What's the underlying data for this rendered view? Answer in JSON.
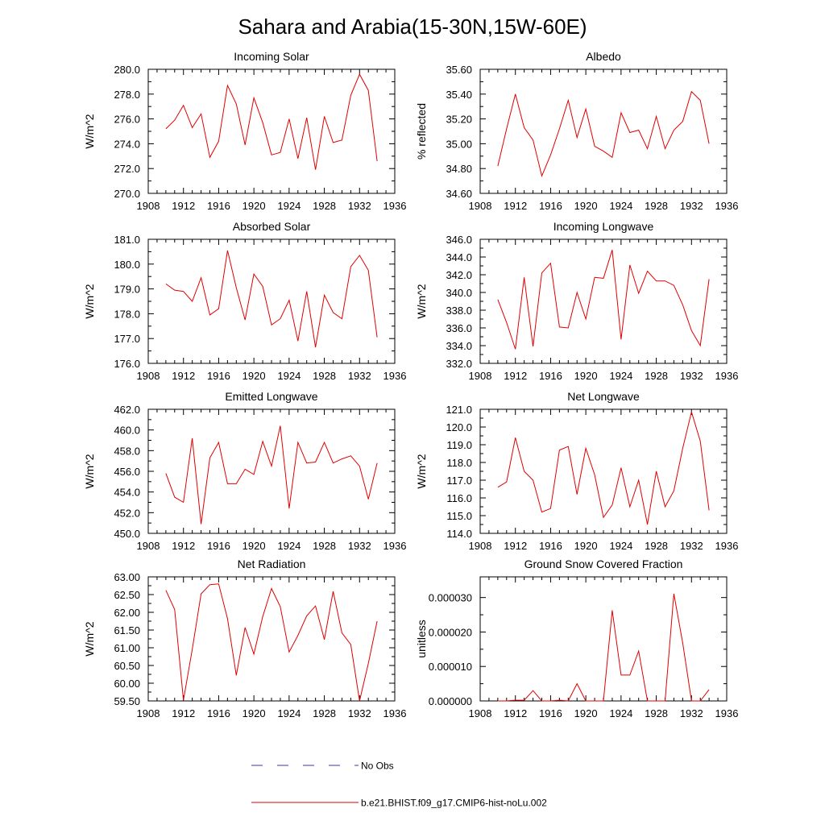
{
  "title": "Sahara and Arabia(15-30N,15W-60E)",
  "legend": {
    "placement": "bottom-center",
    "items": [
      {
        "label": "No Obs",
        "color": "#3a3aa8",
        "style": "dashed"
      },
      {
        "label": "b.e21.BHIST.f09_g17.CMIP6-hist-noLu.002",
        "color": "#e00000",
        "style": "solid"
      }
    ]
  },
  "colors": {
    "series": "#e00000",
    "axis": "#000000"
  },
  "chart_data": [
    {
      "type": "line",
      "title": "Incoming Solar",
      "ylabel": "W/m^2",
      "xlim": [
        1908,
        1936
      ],
      "xticks": [
        "1908",
        "1912",
        "1916",
        "1920",
        "1924",
        "1928",
        "1932",
        "1936"
      ],
      "ylim": [
        270,
        280
      ],
      "yticks": [
        "270.0",
        "272.0",
        "274.0",
        "276.0",
        "278.0",
        "280.0"
      ],
      "x": [
        1910,
        1911,
        1912,
        1913,
        1914,
        1915,
        1916,
        1917,
        1918,
        1919,
        1920,
        1921,
        1922,
        1923,
        1924,
        1925,
        1926,
        1927,
        1928,
        1929,
        1930,
        1931,
        1932,
        1933,
        1934
      ],
      "series": [
        {
          "name": "b.e21.BHIST.f09_g17.CMIP6-hist-noLu.002",
          "values": [
            275.2,
            275.9,
            277.1,
            275.3,
            276.4,
            272.9,
            274.2,
            278.7,
            277.2,
            273.9,
            277.7,
            275.7,
            273.1,
            273.3,
            276.0,
            272.8,
            276.1,
            271.9,
            276.2,
            274.1,
            274.3,
            277.9,
            279.6,
            278.3,
            272.6
          ]
        }
      ]
    },
    {
      "type": "line",
      "title": "Albedo",
      "ylabel": "% reflected",
      "xlim": [
        1908,
        1936
      ],
      "xticks": [
        "1908",
        "1912",
        "1916",
        "1920",
        "1924",
        "1928",
        "1932",
        "1936"
      ],
      "ylim": [
        34.6,
        35.6
      ],
      "yticks": [
        "34.60",
        "34.80",
        "35.00",
        "35.20",
        "35.40",
        "35.60"
      ],
      "x": [
        1910,
        1911,
        1912,
        1913,
        1914,
        1915,
        1916,
        1917,
        1918,
        1919,
        1920,
        1921,
        1922,
        1923,
        1924,
        1925,
        1926,
        1927,
        1928,
        1929,
        1930,
        1931,
        1932,
        1933,
        1934
      ],
      "series": [
        {
          "name": "b.e21.BHIST.f09_g17.CMIP6-hist-noLu.002",
          "values": [
            34.82,
            35.12,
            35.4,
            35.13,
            35.03,
            34.74,
            34.91,
            35.12,
            35.35,
            35.05,
            35.28,
            34.98,
            34.94,
            34.89,
            35.25,
            35.09,
            35.11,
            34.96,
            35.22,
            34.96,
            35.11,
            35.18,
            35.42,
            35.35,
            35.0
          ]
        }
      ]
    },
    {
      "type": "line",
      "title": "Absorbed Solar",
      "ylabel": "W/m^2",
      "xlim": [
        1908,
        1936
      ],
      "xticks": [
        "1908",
        "1912",
        "1916",
        "1920",
        "1924",
        "1928",
        "1932",
        "1936"
      ],
      "ylim": [
        176,
        181
      ],
      "yticks": [
        "176.0",
        "177.0",
        "178.0",
        "179.0",
        "180.0",
        "181.0"
      ],
      "x": [
        1910,
        1911,
        1912,
        1913,
        1914,
        1915,
        1916,
        1917,
        1918,
        1919,
        1920,
        1921,
        1922,
        1923,
        1924,
        1925,
        1926,
        1927,
        1928,
        1929,
        1930,
        1931,
        1932,
        1933,
        1934
      ],
      "series": [
        {
          "name": "b.e21.BHIST.f09_g17.CMIP6-hist-noLu.002",
          "values": [
            179.2,
            178.95,
            178.9,
            178.5,
            179.45,
            177.95,
            178.2,
            180.55,
            179.05,
            177.75,
            179.6,
            179.1,
            177.55,
            177.8,
            178.55,
            176.9,
            178.9,
            176.65,
            178.75,
            178.05,
            177.8,
            179.9,
            180.35,
            179.75,
            177.05
          ]
        }
      ]
    },
    {
      "type": "line",
      "title": "Incoming Longwave",
      "ylabel": "W/m^2",
      "xlim": [
        1908,
        1936
      ],
      "xticks": [
        "1908",
        "1912",
        "1916",
        "1920",
        "1924",
        "1928",
        "1932",
        "1936"
      ],
      "ylim": [
        332,
        346
      ],
      "yticks": [
        "332.0",
        "334.0",
        "336.0",
        "338.0",
        "340.0",
        "342.0",
        "344.0",
        "346.0"
      ],
      "x": [
        1910,
        1911,
        1912,
        1913,
        1914,
        1915,
        1916,
        1917,
        1918,
        1919,
        1920,
        1921,
        1922,
        1923,
        1924,
        1925,
        1926,
        1927,
        1928,
        1929,
        1930,
        1931,
        1932,
        1933,
        1934
      ],
      "series": [
        {
          "name": "b.e21.BHIST.f09_g17.CMIP6-hist-noLu.002",
          "values": [
            339.2,
            336.6,
            333.6,
            341.7,
            333.9,
            342.2,
            343.3,
            336.1,
            336.0,
            340.0,
            337.0,
            341.7,
            341.6,
            344.8,
            334.7,
            343.1,
            339.9,
            342.4,
            341.3,
            341.3,
            340.8,
            338.6,
            335.7,
            334.0,
            341.5
          ]
        }
      ]
    },
    {
      "type": "line",
      "title": "Emitted Longwave",
      "ylabel": "W/m^2",
      "xlim": [
        1908,
        1936
      ],
      "xticks": [
        "1908",
        "1912",
        "1916",
        "1920",
        "1924",
        "1928",
        "1932",
        "1936"
      ],
      "ylim": [
        450,
        462
      ],
      "yticks": [
        "450.0",
        "452.0",
        "454.0",
        "456.0",
        "458.0",
        "460.0",
        "462.0"
      ],
      "x": [
        1910,
        1911,
        1912,
        1913,
        1914,
        1915,
        1916,
        1917,
        1918,
        1919,
        1920,
        1921,
        1922,
        1923,
        1924,
        1925,
        1926,
        1927,
        1928,
        1929,
        1930,
        1931,
        1932,
        1933,
        1934
      ],
      "series": [
        {
          "name": "b.e21.BHIST.f09_g17.CMIP6-hist-noLu.002",
          "values": [
            455.8,
            453.5,
            453.0,
            459.2,
            450.9,
            457.3,
            458.8,
            454.8,
            454.8,
            456.2,
            455.7,
            458.9,
            456.5,
            460.4,
            452.4,
            458.8,
            456.8,
            456.9,
            458.8,
            456.8,
            457.2,
            457.5,
            456.5,
            453.3,
            456.8
          ]
        }
      ]
    },
    {
      "type": "line",
      "title": "Net Longwave",
      "ylabel": "W/m^2",
      "xlim": [
        1908,
        1936
      ],
      "xticks": [
        "1908",
        "1912",
        "1916",
        "1920",
        "1924",
        "1928",
        "1932",
        "1936"
      ],
      "ylim": [
        114,
        121
      ],
      "yticks": [
        "114.0",
        "115.0",
        "116.0",
        "117.0",
        "118.0",
        "119.0",
        "120.0",
        "121.0"
      ],
      "x": [
        1910,
        1911,
        1912,
        1913,
        1914,
        1915,
        1916,
        1917,
        1918,
        1919,
        1920,
        1921,
        1922,
        1923,
        1924,
        1925,
        1926,
        1927,
        1928,
        1929,
        1930,
        1931,
        1932,
        1933,
        1934
      ],
      "series": [
        {
          "name": "b.e21.BHIST.f09_g17.CMIP6-hist-noLu.002",
          "values": [
            116.6,
            116.9,
            119.4,
            117.5,
            117.0,
            115.2,
            115.4,
            118.7,
            118.9,
            116.2,
            118.8,
            117.3,
            114.9,
            115.6,
            117.7,
            115.5,
            117.0,
            114.5,
            117.5,
            115.5,
            116.4,
            118.8,
            120.85,
            119.2,
            115.3
          ]
        }
      ]
    },
    {
      "type": "line",
      "title": "Net Radiation",
      "ylabel": "W/m^2",
      "xlim": [
        1908,
        1936
      ],
      "xticks": [
        "1908",
        "1912",
        "1916",
        "1920",
        "1924",
        "1928",
        "1932",
        "1936"
      ],
      "ylim": [
        59.5,
        63.0
      ],
      "yticks": [
        "59.50",
        "60.00",
        "60.50",
        "61.00",
        "61.50",
        "62.00",
        "62.50",
        "63.00"
      ],
      "x": [
        1910,
        1911,
        1912,
        1913,
        1914,
        1915,
        1916,
        1917,
        1918,
        1919,
        1920,
        1921,
        1922,
        1923,
        1924,
        1925,
        1926,
        1927,
        1928,
        1929,
        1930,
        1931,
        1932,
        1933,
        1934
      ],
      "series": [
        {
          "name": "b.e21.BHIST.f09_g17.CMIP6-hist-noLu.002",
          "values": [
            62.62,
            62.08,
            59.52,
            60.95,
            62.52,
            62.78,
            62.8,
            61.82,
            60.22,
            61.57,
            60.82,
            61.88,
            62.67,
            62.16,
            60.88,
            61.35,
            61.9,
            62.18,
            61.23,
            62.59,
            61.42,
            61.09,
            59.5,
            60.56,
            61.75
          ]
        }
      ]
    },
    {
      "type": "line",
      "title": "Ground Snow Covered Fraction",
      "ylabel": "unitless",
      "xlim": [
        1908,
        1936
      ],
      "xticks": [
        "1908",
        "1912",
        "1916",
        "1920",
        "1924",
        "1928",
        "1932",
        "1936"
      ],
      "ylim": [
        0,
        3.6e-05
      ],
      "yticks": [
        "0.000000",
        "0.000010",
        "0.000020",
        "0.000030"
      ],
      "ytick_values": [
        0,
        1e-05,
        2e-05,
        3e-05
      ],
      "x": [
        1910,
        1911,
        1912,
        1913,
        1914,
        1915,
        1916,
        1917,
        1918,
        1919,
        1920,
        1921,
        1922,
        1923,
        1924,
        1925,
        1926,
        1927,
        1928,
        1929,
        1930,
        1931,
        1932,
        1933,
        1934
      ],
      "series": [
        {
          "name": "b.e21.BHIST.f09_g17.CMIP6-hist-noLu.002",
          "values": [
            0,
            0,
            2e-07,
            2e-07,
            3e-06,
            0,
            0,
            2e-07,
            0,
            5e-06,
            0,
            0,
            0,
            2.63e-05,
            7.5e-06,
            7.5e-06,
            1.45e-05,
            0,
            0,
            0,
            3.11e-05,
            1.68e-05,
            0,
            0,
            3.3e-06
          ]
        }
      ]
    }
  ]
}
